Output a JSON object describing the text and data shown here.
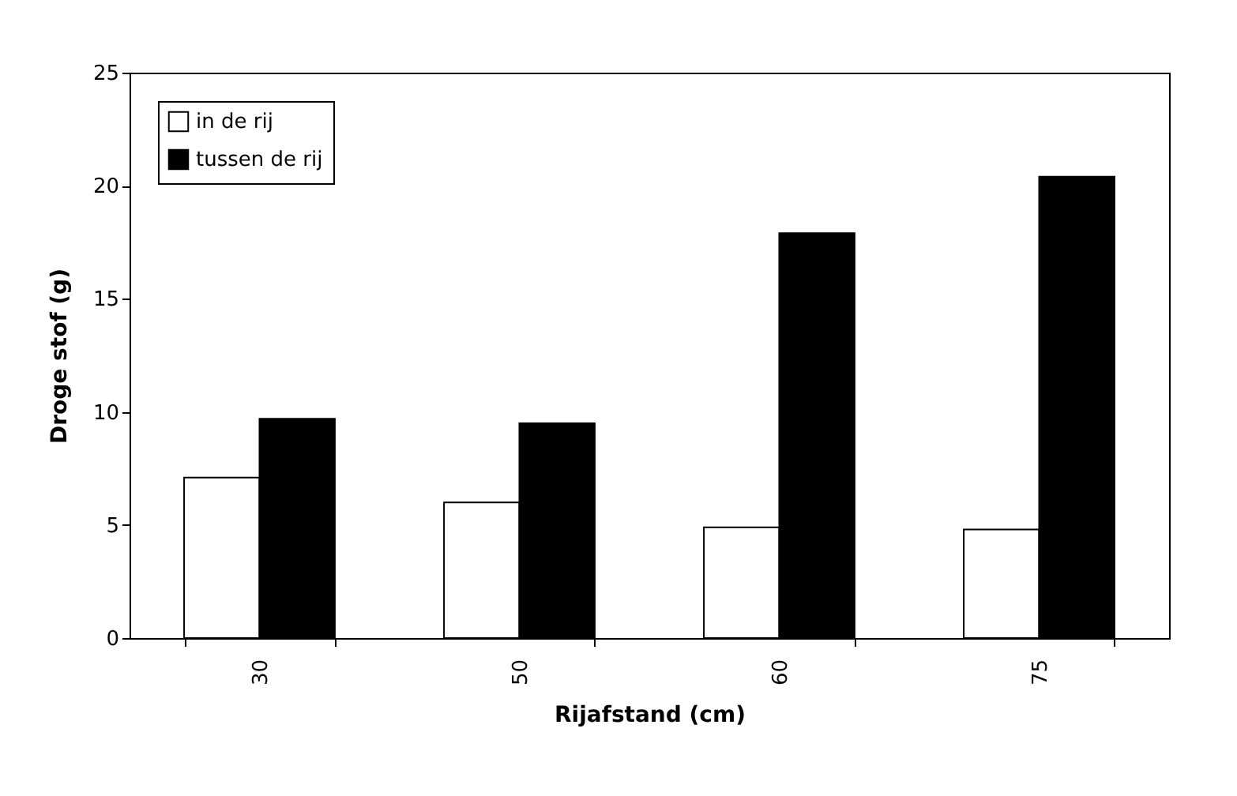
{
  "chart_data": {
    "type": "bar",
    "xlabel": "Rijafstand (cm)",
    "ylabel": "Droge stof (g)",
    "categories": [
      "30",
      "50",
      "60",
      "75"
    ],
    "series": [
      {
        "name": "in de rij",
        "color": "#ffffff",
        "values": [
          7.1,
          6.0,
          4.9,
          4.8
        ]
      },
      {
        "name": "tussen de rij",
        "color": "#000000",
        "values": [
          9.7,
          9.5,
          17.9,
          20.4
        ]
      }
    ],
    "ylim": [
      0,
      25
    ],
    "yticks": [
      0,
      5,
      10,
      15,
      20,
      25
    ],
    "grid": false,
    "legend": "top left"
  }
}
